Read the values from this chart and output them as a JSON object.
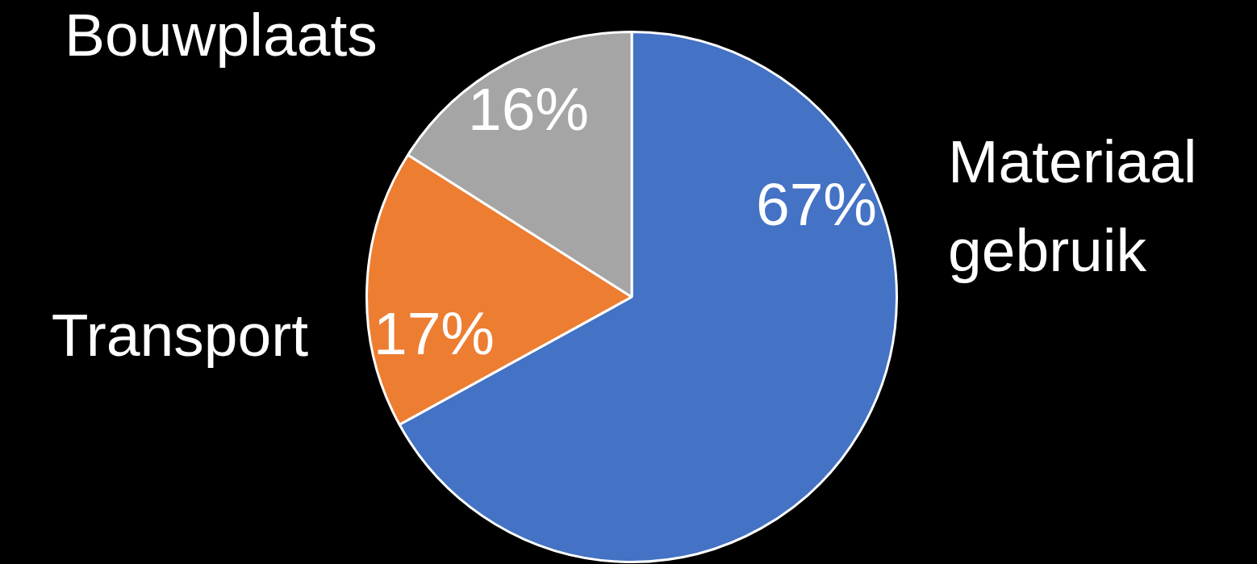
{
  "chart_data": {
    "type": "pie",
    "categories": [
      "Materiaal gebruik",
      "Transport",
      "Bouwplaats"
    ],
    "values": [
      67,
      17,
      16
    ],
    "colors": [
      "#4472c4",
      "#ed7d31",
      "#a5a5a5"
    ],
    "value_labels": [
      "67%",
      "17%",
      "16%"
    ],
    "legend": false
  }
}
